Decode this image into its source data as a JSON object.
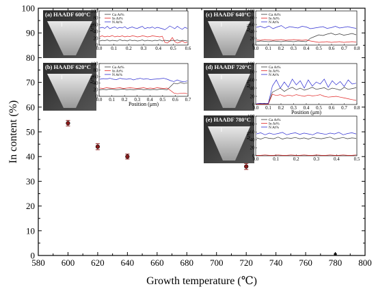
{
  "chart_data": {
    "type": "scatter",
    "xlabel": "Growth temperature (℃)",
    "ylabel": "In content (%)",
    "xlim": [
      580,
      800
    ],
    "ylim": [
      0,
      100
    ],
    "x_ticks": [
      "580",
      "600",
      "620",
      "640",
      "660",
      "680",
      "700",
      "720",
      "740",
      "760",
      "780",
      "800"
    ],
    "y_ticks": [
      "0",
      "10",
      "20",
      "30",
      "40",
      "50",
      "60",
      "70",
      "80",
      "90",
      "100"
    ],
    "series": [
      {
        "points": [
          {
            "x": 600,
            "y": 53.5,
            "err": 0.7
          },
          {
            "x": 620,
            "y": 44.0,
            "err": 0.8
          },
          {
            "x": 640,
            "y": 40.0,
            "err": 0.6
          },
          {
            "x": 720,
            "y": 36.0,
            "err": 0.8
          },
          {
            "x": 780,
            "y": 0.5,
            "err": 0
          }
        ]
      }
    ],
    "colors": {
      "series": "#8b1a1a",
      "ga": "#333333",
      "in": "#e02020",
      "n": "#2a2ad0"
    },
    "insets": [
      {
        "label": "(a) HAADF 600°C",
        "ga": [
          12,
          14,
          13,
          15,
          12,
          14,
          13,
          12,
          16,
          13,
          14,
          12,
          15,
          13,
          14,
          12,
          13,
          15,
          12,
          14,
          13,
          12,
          14,
          13,
          15,
          12,
          14,
          13,
          12,
          14,
          13,
          15,
          12,
          14,
          13,
          12
        ],
        "in": [
          25,
          27,
          24,
          26,
          25,
          28,
          24,
          26,
          25,
          27,
          24,
          26,
          25,
          27,
          26,
          24,
          25,
          27,
          26,
          24,
          25,
          27,
          26,
          25,
          24,
          26,
          8,
          6,
          12,
          22,
          10,
          6,
          8,
          12,
          7,
          8
        ],
        "n": [
          50,
          52,
          49,
          55,
          48,
          51,
          53,
          49,
          52,
          50,
          54,
          48,
          51,
          53,
          50,
          49,
          52,
          55,
          48,
          51,
          50,
          53,
          49,
          52,
          50,
          48,
          45,
          50,
          56,
          52,
          48,
          55,
          50,
          46,
          52,
          49
        ],
        "x_ticks": [
          "0.0",
          "0.1",
          "0.2",
          "0.3",
          "0.4",
          "0.5",
          "0.6"
        ],
        "y_ticks": [
          "0",
          "20",
          "40",
          "60",
          "80",
          "100"
        ],
        "y_label": "At%",
        "legend": [
          "Ga At%",
          "In At%",
          "N At%"
        ]
      },
      {
        "label": "(b) HAADF 620°C",
        "ga": [
          20,
          21,
          20,
          22,
          21,
          20,
          21,
          22,
          20,
          21,
          20,
          21,
          22,
          20,
          21,
          20,
          21,
          20,
          22,
          21,
          20,
          30,
          40,
          38,
          42,
          39,
          41
        ],
        "in": [
          25,
          24,
          26,
          25,
          24,
          25,
          26,
          24,
          25,
          26,
          25,
          24,
          25,
          26,
          24,
          25,
          24,
          26,
          25,
          24,
          25,
          18,
          10,
          8,
          9,
          10,
          8
        ],
        "n": [
          52,
          54,
          53,
          55,
          52,
          51,
          55,
          53,
          52,
          54,
          50,
          53,
          55,
          52,
          54,
          51,
          52,
          53,
          54,
          55,
          52,
          48,
          45,
          50,
          46,
          44,
          47
        ],
        "x_ticks": [
          "0.0",
          "0.1",
          "0.2",
          "0.3",
          "0.4",
          "0.5",
          "0.6",
          "0.7"
        ],
        "y_ticks": [
          "0",
          "20",
          "40",
          "60",
          "80",
          "100"
        ],
        "y_label": "At%",
        "x_title": "Position (μm)",
        "legend": [
          "Ga At%",
          "In At%",
          "N At%"
        ]
      },
      {
        "label": "(c) HAADF 640°C",
        "ga": [
          10,
          12,
          11,
          10,
          12,
          11,
          10,
          12,
          11,
          10,
          12,
          11,
          10,
          20,
          25,
          30,
          28,
          32,
          35,
          30,
          33,
          29,
          31,
          34,
          30
        ],
        "in": [
          15,
          14,
          16,
          15,
          14,
          15,
          16,
          14,
          15,
          16,
          15,
          14,
          15,
          12,
          10,
          8,
          9,
          10,
          8,
          9,
          10,
          8,
          9,
          10,
          9
        ],
        "n": [
          52,
          55,
          50,
          56,
          48,
          53,
          57,
          49,
          54,
          52,
          50,
          55,
          53,
          48,
          50,
          52,
          54,
          49,
          51,
          55,
          50,
          52,
          54,
          51,
          49
        ],
        "x_ticks": [
          "0.0",
          "0.1",
          "0.2",
          "0.3",
          "0.4",
          "0.5",
          "0.6",
          "0.7",
          "0.8"
        ],
        "y_ticks": [
          "0",
          "20",
          "40",
          "60",
          "80",
          "100"
        ],
        "y_label": "At%",
        "legend": [
          "Ga At%",
          "In At%",
          "N At%"
        ]
      },
      {
        "label": "(d) HAADF 720°C",
        "ga": [
          2,
          2,
          3,
          2,
          30,
          35,
          40,
          32,
          38,
          42,
          36,
          40,
          35,
          38,
          42,
          37,
          39,
          41,
          36,
          40,
          38,
          35,
          42,
          37,
          39,
          41
        ],
        "in": [
          1,
          1,
          1,
          1,
          25,
          22,
          24,
          20,
          23,
          21,
          24,
          22,
          20,
          23,
          21,
          22,
          24,
          20,
          18,
          19,
          20,
          18,
          16,
          14,
          12,
          10
        ],
        "n": [
          2,
          3,
          2,
          3,
          45,
          60,
          40,
          55,
          42,
          62,
          48,
          58,
          40,
          60,
          45,
          55,
          50,
          62,
          42,
          58,
          48,
          56,
          44,
          60,
          50,
          52
        ],
        "x_ticks": [
          "0.0",
          "0.1",
          "0.2",
          "0.3",
          "0.4",
          "0.5",
          "0.6",
          "0.7",
          "0.8"
        ],
        "y_ticks": [
          "0",
          "20",
          "40",
          "60",
          "80",
          "100"
        ],
        "y_label": "At%",
        "x_title": "Position (μm)",
        "legend": [
          "Ga At%",
          "In At%",
          "N At%"
        ]
      },
      {
        "label": "(e) HAADF 780°C",
        "ga": [
          45,
          42,
          46,
          44,
          43,
          47,
          42,
          45,
          44,
          46,
          43,
          45,
          42,
          46,
          44,
          43,
          45,
          47,
          42,
          44,
          46,
          43,
          45,
          44
        ],
        "in": [
          1,
          1,
          2,
          1,
          1,
          2,
          1,
          1,
          2,
          1,
          1,
          2,
          1,
          1,
          2,
          1,
          1,
          2,
          1,
          1,
          2,
          1,
          1,
          2
        ],
        "n": [
          55,
          58,
          53,
          57,
          54,
          56,
          59,
          53,
          56,
          58,
          54,
          57,
          55,
          53,
          58,
          56,
          54,
          57,
          55,
          59,
          53,
          56,
          58,
          55
        ],
        "x_ticks": [
          "0.0",
          "0.1",
          "0.2",
          "0.3",
          "0.4",
          "0.5"
        ],
        "y_ticks": [
          "0",
          "20",
          "40",
          "60",
          "80",
          "100"
        ],
        "y_label": "At%",
        "legend": [
          "Ga At%",
          "In At%",
          "N At%"
        ]
      }
    ]
  }
}
